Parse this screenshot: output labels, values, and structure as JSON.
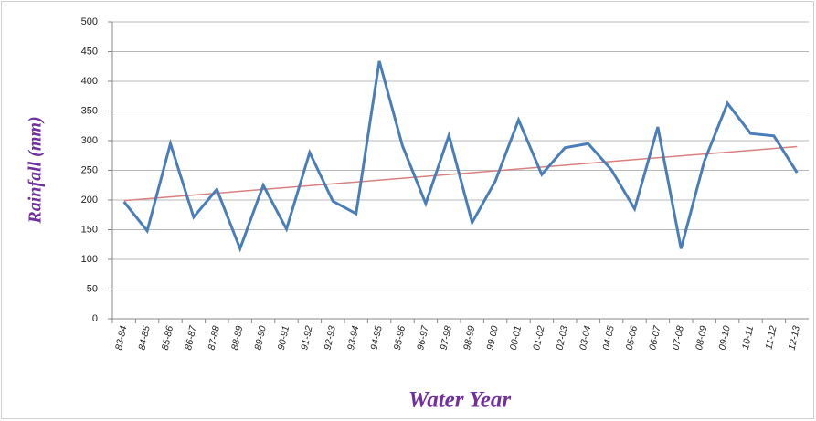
{
  "chart_data": {
    "type": "line",
    "y_label": "Rainfall (mm)",
    "x_label": "Water Year",
    "categories": [
      "83-84",
      "84-85",
      "85-86",
      "86-87",
      "87-88",
      "88-89",
      "89-90",
      "90-91",
      "91-92",
      "92-93",
      "93-94",
      "94-95",
      "95-96",
      "96-97",
      "97-98",
      "98-99",
      "99-00",
      "00-01",
      "01-02",
      "02-03",
      "03-04",
      "04-05",
      "05-06",
      "06-07",
      "07-08",
      "08-09",
      "09-10",
      "10-11",
      "11-12",
      "12-13"
    ],
    "series": [
      {
        "color": "#4a7ebb",
        "values": [
          197,
          148,
          295,
          171,
          218,
          118,
          225,
          151,
          280,
          198,
          177,
          434,
          291,
          194,
          309,
          162,
          232,
          335,
          243,
          288,
          295,
          251,
          185,
          323,
          118,
          265,
          363,
          312,
          308,
          246
        ]
      }
    ],
    "trend": {
      "color": "#d9817f",
      "values": [
        199,
        290
      ]
    },
    "ylim": [
      0,
      500
    ],
    "yticks": [
      0,
      50,
      100,
      150,
      200,
      250,
      300,
      350,
      400,
      450,
      500
    ],
    "grid": true
  }
}
